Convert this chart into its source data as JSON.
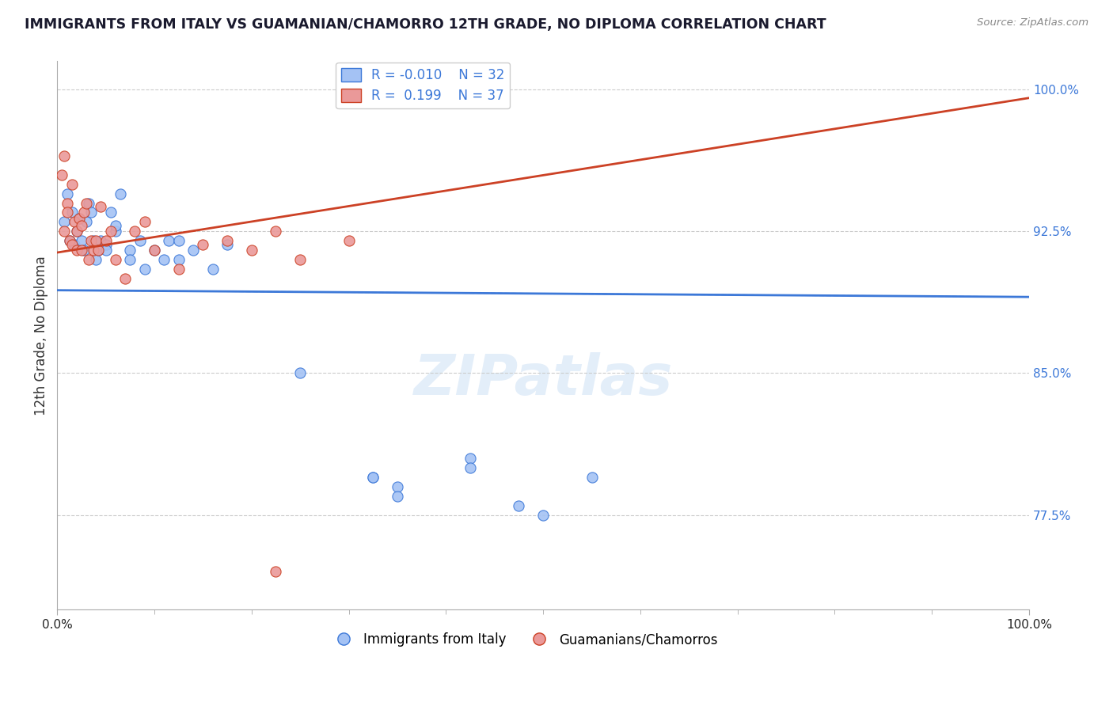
{
  "title": "IMMIGRANTS FROM ITALY VS GUAMANIAN/CHAMORRO 12TH GRADE, NO DIPLOMA CORRELATION CHART",
  "source_text": "Source: ZipAtlas.com",
  "ylabel": "12th Grade, No Diploma",
  "xmin": 0.0,
  "xmax": 20.0,
  "ymin": 72.5,
  "ymax": 101.5,
  "legend_blue_r": "-0.010",
  "legend_blue_n": "32",
  "legend_pink_r": "0.199",
  "legend_pink_n": "37",
  "blue_color": "#a4c2f4",
  "pink_color": "#ea9999",
  "blue_line_color": "#3c78d8",
  "pink_line_color": "#cc4125",
  "blue_scatter_x": [
    0.15,
    0.2,
    0.25,
    0.3,
    0.35,
    0.4,
    0.45,
    0.5,
    0.55,
    0.6,
    0.65,
    0.7,
    0.75,
    0.8,
    0.85,
    0.9,
    1.0,
    1.1,
    1.2,
    1.3,
    1.5,
    1.7,
    2.0,
    2.3,
    2.5,
    2.8,
    3.2,
    3.5,
    5.0,
    6.5,
    7.0,
    8.5
  ],
  "blue_scatter_y": [
    93.0,
    94.5,
    92.0,
    93.5,
    91.8,
    92.5,
    93.2,
    92.0,
    91.5,
    93.0,
    94.0,
    93.5,
    92.0,
    91.0,
    91.5,
    92.0,
    91.8,
    93.5,
    92.5,
    94.5,
    91.5,
    92.0,
    91.5,
    92.0,
    91.0,
    91.5,
    90.5,
    91.8,
    85.0,
    79.5,
    79.0,
    80.5
  ],
  "blue_scatter_x2": [
    1.0,
    1.2,
    1.5,
    1.8,
    2.2,
    2.5,
    6.5,
    7.0,
    8.5,
    9.5,
    10.0,
    11.0
  ],
  "blue_scatter_y2": [
    91.5,
    92.8,
    91.0,
    90.5,
    91.0,
    92.0,
    79.5,
    78.5,
    80.0,
    78.0,
    77.5,
    79.5
  ],
  "pink_scatter_x": [
    0.1,
    0.15,
    0.15,
    0.2,
    0.2,
    0.25,
    0.3,
    0.3,
    0.35,
    0.4,
    0.4,
    0.45,
    0.5,
    0.5,
    0.55,
    0.6,
    0.65,
    0.7,
    0.75,
    0.8,
    0.85,
    0.9,
    1.0,
    1.1,
    1.2,
    1.4,
    1.6,
    1.8,
    2.0,
    2.5,
    3.0,
    3.5,
    4.0,
    4.5,
    5.0,
    6.0,
    4.5
  ],
  "pink_scatter_y": [
    95.5,
    96.5,
    92.5,
    94.0,
    93.5,
    92.0,
    91.8,
    95.0,
    93.0,
    92.5,
    91.5,
    93.2,
    92.8,
    91.5,
    93.5,
    94.0,
    91.0,
    92.0,
    91.5,
    92.0,
    91.5,
    93.8,
    92.0,
    92.5,
    91.0,
    90.0,
    92.5,
    93.0,
    91.5,
    90.5,
    91.8,
    92.0,
    91.5,
    92.5,
    91.0,
    92.0,
    74.5
  ],
  "ytick_positions": [
    77.5,
    85.0,
    92.5,
    100.0
  ],
  "ytick_labels": [
    "77.5%",
    "85.0%",
    "92.5%",
    "100.0%"
  ],
  "watermark_text": "ZIPatlas"
}
